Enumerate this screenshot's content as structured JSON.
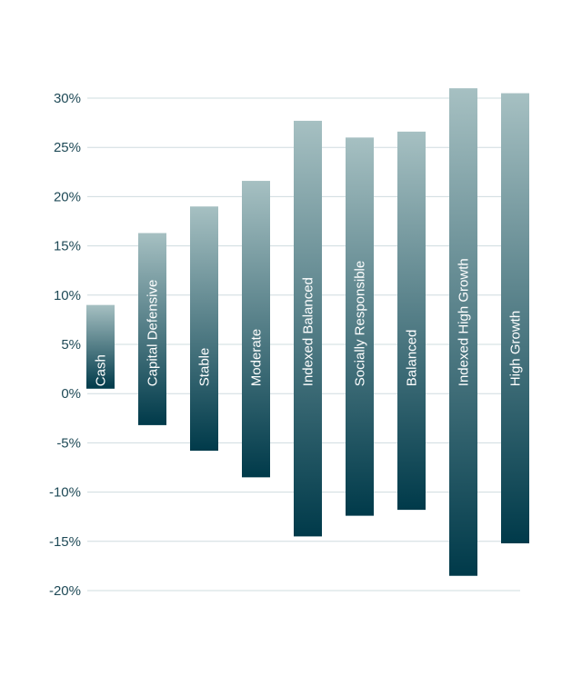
{
  "colors": {
    "bar_top": "#a6c0c2",
    "bar_bottom": "#003a4a",
    "grid": "#cfdcdf",
    "tick_text": "#1f4a57",
    "label_text": "#ffffff"
  },
  "chart_data": {
    "type": "bar",
    "subtype": "floating-range",
    "title": "",
    "xlabel": "",
    "ylabel": "",
    "ylim": [
      -20,
      30
    ],
    "yticks": [
      30,
      25,
      20,
      15,
      10,
      5,
      0,
      -5,
      -10,
      -15,
      -20
    ],
    "ytick_labels": [
      "30%",
      "25%",
      "20%",
      "15%",
      "10%",
      "5%",
      "0%",
      "-5%",
      "-10%",
      "-15%",
      "-20%"
    ],
    "grid": true,
    "categories": [
      "Cash",
      "Capital Defensive",
      "Stable",
      "Moderate",
      "Indexed Balanced",
      "Socially Responsible",
      "Balanced",
      "Indexed High Growth",
      "High Growth"
    ],
    "high": [
      9.0,
      16.3,
      19.0,
      21.6,
      27.7,
      26.0,
      26.6,
      31.0,
      30.5
    ],
    "low": [
      0.5,
      -3.2,
      -5.8,
      -8.5,
      -14.5,
      -12.4,
      -11.8,
      -18.5,
      -15.2
    ]
  }
}
